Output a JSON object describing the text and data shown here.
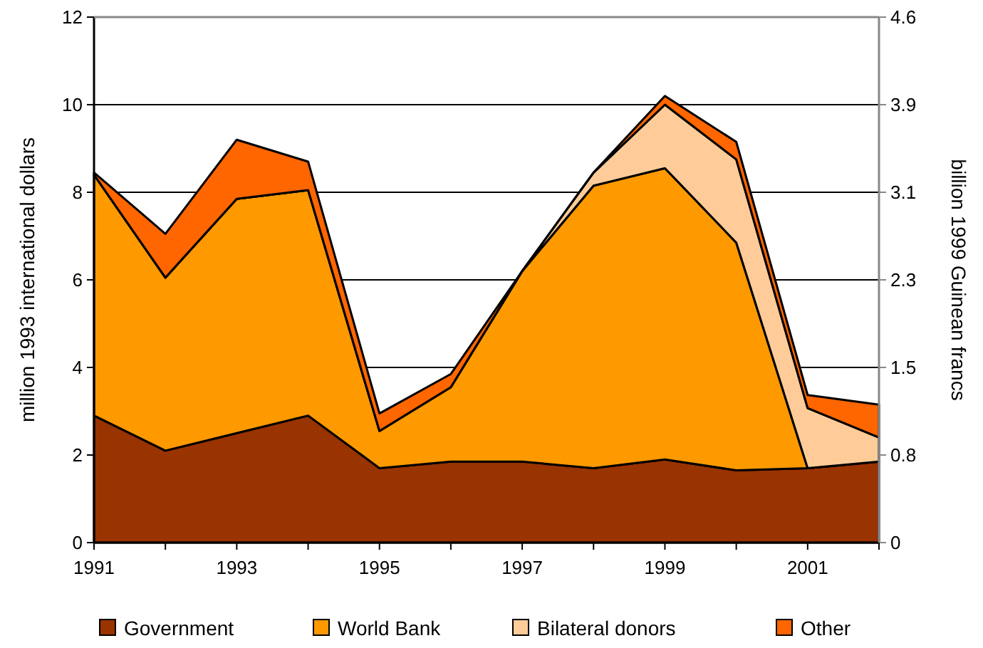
{
  "chart_data": {
    "type": "area",
    "stacked": true,
    "ylabel": "million 1993 international dollars",
    "y2label": "billion 1999 Guinean francs",
    "x": [
      1991,
      1992,
      1993,
      1994,
      1995,
      1996,
      1997,
      1998,
      1999,
      2000,
      2001,
      2002
    ],
    "xlim": [
      1991,
      2002
    ],
    "xticks": [
      1991,
      {
        "value": 1992,
        "label": null
      },
      1993,
      {
        "value": 1994,
        "label": null
      },
      1995,
      {
        "value": 1996,
        "label": null
      },
      1997,
      {
        "value": 1998,
        "label": null
      },
      1999,
      {
        "value": 2000,
        "label": null
      },
      2001,
      {
        "value": 2002,
        "label": null
      }
    ],
    "ylim": [
      0,
      12
    ],
    "yticks": [
      0,
      2,
      4,
      6,
      8,
      10,
      12
    ],
    "y2lim": [
      0,
      4.62
    ],
    "y2ticks": [
      0,
      {
        "value": 0.77,
        "label": "0.8"
      },
      {
        "value": 1.54,
        "label": "1.5"
      },
      {
        "value": 2.31,
        "label": "2.3"
      },
      {
        "value": 3.08,
        "label": "3.1"
      },
      {
        "value": 3.85,
        "label": "3.9"
      },
      {
        "value": 4.62,
        "label": "4.6"
      }
    ],
    "grid": "y",
    "legend": "bottom",
    "series": [
      {
        "name": "Government",
        "color": "#993300",
        "values": [
          2.9,
          2.1,
          2.5,
          2.9,
          1.7,
          1.85,
          1.85,
          1.7,
          1.9,
          1.65,
          1.7,
          1.85
        ]
      },
      {
        "name": "World Bank",
        "color": "#ff9900",
        "values": [
          5.5,
          3.95,
          5.35,
          5.15,
          0.85,
          1.7,
          4.35,
          6.45,
          6.65,
          5.2,
          0,
          0
        ]
      },
      {
        "name": "Bilateral donors",
        "color": "#ffcc99",
        "values": [
          0,
          0,
          0,
          0,
          0,
          0,
          0,
          0.3,
          1.45,
          1.9,
          1.37,
          0.55
        ]
      },
      {
        "name": "Other",
        "color": "#ff6600",
        "values": [
          0.05,
          1,
          1.35,
          0.65,
          0.4,
          0.3,
          0,
          0,
          0.2,
          0.4,
          0.3,
          0.75
        ]
      }
    ]
  }
}
